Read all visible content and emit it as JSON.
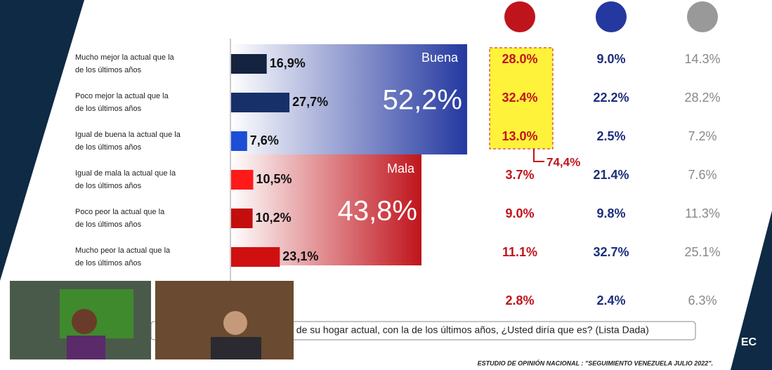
{
  "rows": [
    {
      "label": "Mucho mejor la actual que la de los últimos años",
      "value": 16.9,
      "value_label": "16,9%",
      "red": "28.0%",
      "blue": "9.0%",
      "gray": "14.3%"
    },
    {
      "label": "Poco mejor la actual que la de los últimos años",
      "value": 27.7,
      "value_label": "27,7%",
      "red": "32.4%",
      "blue": "22.2%",
      "gray": "28.2%"
    },
    {
      "label": "Igual de buena la actual que la de los últimos años",
      "value": 7.6,
      "value_label": "7,6%",
      "red": "13.0%",
      "blue": "2.5%",
      "gray": "7.2%"
    },
    {
      "label": "Igual de mala la actual que la de los últimos años",
      "value": 10.5,
      "value_label": "10,5%",
      "red": "3.7%",
      "blue": "21.4%",
      "gray": "7.6%"
    },
    {
      "label": "Poco peor la actual que la de los últimos años",
      "value": 10.2,
      "value_label": "10,2%",
      "red": "9.0%",
      "blue": "9.8%",
      "gray": "11.3%"
    },
    {
      "label": "Mucho peor la actual que la de los últimos años",
      "value": 23.1,
      "value_label": "23,1%",
      "red": "11.1%",
      "blue": "32.7%",
      "gray": "25.1%"
    }
  ],
  "extra_row": {
    "red": "2.8%",
    "blue": "2.4%",
    "gray": "6.3%"
  },
  "groups": [
    {
      "name": "Buena",
      "total_label": "52,2%"
    },
    {
      "name": "Mala",
      "total_label": "43,8%"
    }
  ],
  "highlight_total": "74,4%",
  "question": "ica de su hogar actual, con la de los últimos años, ¿Usted diría que es? (Lista Dada)",
  "footer": "ESTUDIO DE OPINIÓN NACIONAL : \"SEGUIMIENTO VENEZUELA JULIO 2022\".",
  "logo": "EC"
}
